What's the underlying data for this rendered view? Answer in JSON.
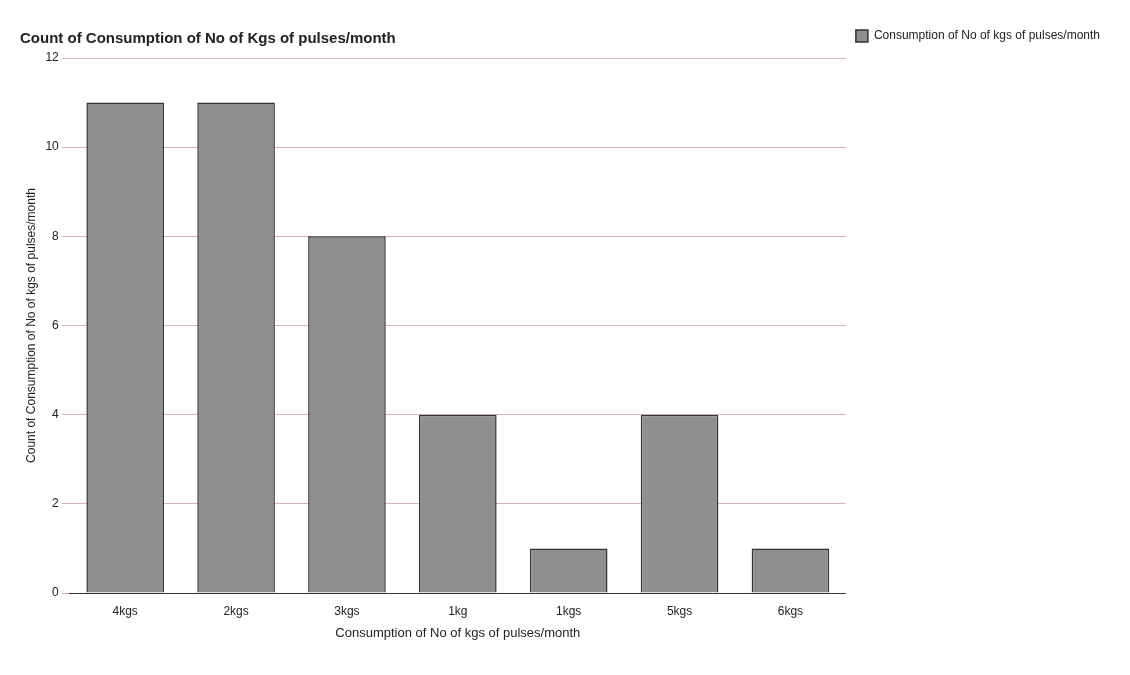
{
  "chart_data": {
    "type": "bar",
    "title": "Count of Consumption of No of Kgs of pulses/month",
    "xlabel": "Consumption of No of kgs of pulses/month",
    "ylabel": "Count of Consumption of No of kgs of pulses/month",
    "categories": [
      "4kgs",
      "2kgs",
      "3kgs",
      "1kg",
      "1kgs",
      "5kgs",
      "6kgs"
    ],
    "series": [
      {
        "name": "Consumption of No of kgs of pulses/month",
        "color": "#8f8f8f",
        "values": [
          11,
          11,
          8,
          4,
          1,
          4,
          1
        ]
      }
    ],
    "ylim": [
      0,
      12
    ],
    "yticks": [
      0,
      2,
      4,
      6,
      8,
      10,
      12
    ],
    "grid": "y",
    "legend": "top right"
  }
}
